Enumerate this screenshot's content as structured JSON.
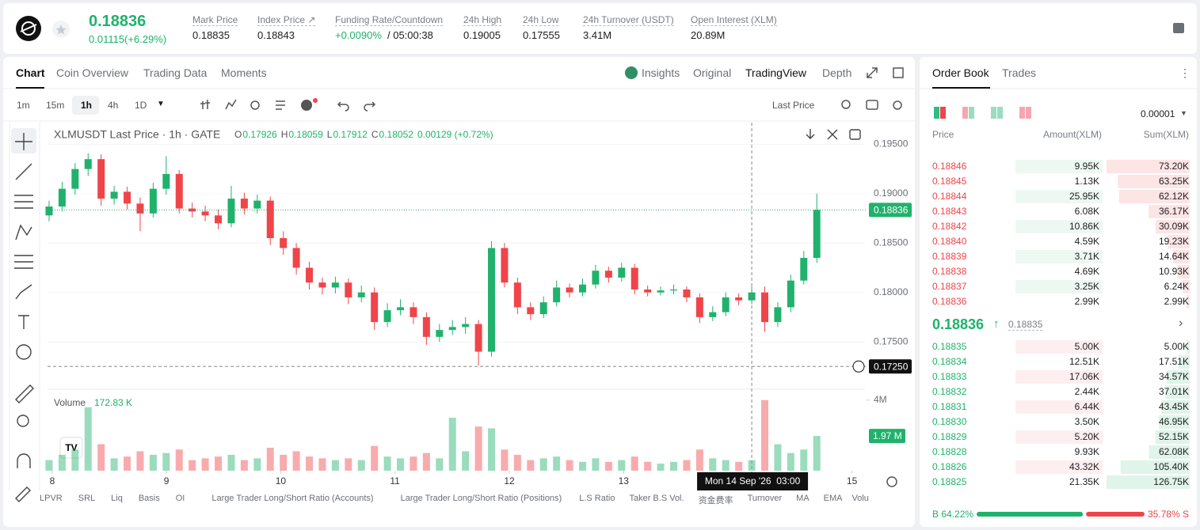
{
  "header": {
    "price": "0.18836",
    "change": "0.01115(+6.29%)",
    "stats": [
      {
        "label": "Mark Price",
        "value": "0.18835"
      },
      {
        "label": "Index Price ↗",
        "value": "0.18843"
      },
      {
        "label": "Funding Rate/Countdown",
        "value": "+0.0090%",
        "extra": " / 05:00:38"
      },
      {
        "label": "24h High",
        "value": "0.19005"
      },
      {
        "label": "24h Low",
        "value": "0.17555"
      },
      {
        "label": "24h Turnover (USDT)",
        "value": "3.41M"
      },
      {
        "label": "Open Interest (XLM)",
        "value": "20.89M"
      }
    ]
  },
  "tabs": {
    "left": [
      "Chart",
      "Coin Overview",
      "Trading Data",
      "Moments"
    ],
    "right": [
      "Insights",
      "Original",
      "TradingView",
      "Depth"
    ]
  },
  "toolbar": {
    "intervals": [
      "1m",
      "15m",
      "1h",
      "4h",
      "1D"
    ],
    "price_type": "Last Price"
  },
  "indicators": [
    "LPVR",
    "SRL",
    "Liq",
    "Basis",
    "OI",
    "Large Trader Long/Short Ratio (Accounts)",
    "Large Trader Long/Short Ratio (Positions)",
    "L.S Ratio",
    "Taker B.S Vol.",
    "资金费率",
    "Turnover",
    "MA",
    "EMA",
    "Volu"
  ],
  "chart_data": {
    "type": "candlestick",
    "title": "XLMUSDT Last Price · 1h · GATE",
    "legend": [
      {
        "k": "O",
        "v": "0.17926"
      },
      {
        "k": "H",
        "v": "0.18059"
      },
      {
        "k": "L",
        "v": "0.17912"
      },
      {
        "k": "C",
        "v": "0.18052"
      },
      {
        "k": "",
        "v": "0.00129 (+0.72%)"
      }
    ],
    "up_color": "#20b26c",
    "down_color": "#ef454a",
    "xlim": [
      -0.12,
      62.7
    ],
    "xticks": [
      {
        "value": 0.24,
        "label": "8"
      },
      {
        "value": 9.02,
        "label": "9"
      },
      {
        "value": 17.8,
        "label": "10"
      },
      {
        "value": 26.58,
        "label": "11"
      },
      {
        "value": 35.37,
        "label": "12"
      },
      {
        "value": 44.15,
        "label": "13"
      },
      {
        "value": 61.7,
        "label": "15"
      }
    ],
    "ylim": [
      0.1702,
      0.1972
    ],
    "yticks": [
      {
        "value": 0.195,
        "label": "0.19500"
      },
      {
        "value": 0.19,
        "label": "0.19000"
      },
      {
        "value": 0.185,
        "label": "0.18500"
      },
      {
        "value": 0.18,
        "label": "0.18000"
      },
      {
        "value": 0.175,
        "label": "0.17500"
      }
    ],
    "last_price": 0.18836,
    "crosshair_y": {
      "value": 0.1725,
      "label": "0.17250"
    },
    "crosshair_x": {
      "value": 54,
      "label": "Mon 14 Sep '26  03:00"
    },
    "volume_title": "Volume",
    "volume_legend": "172.83 K",
    "y2lim": [
      0,
      4.35
    ],
    "y2ticks": [
      {
        "value": 4,
        "label": "4M"
      }
    ],
    "volume_tag": {
      "value": 1.97,
      "label": "1.97 M"
    },
    "ohlc": [
      [
        0.1878,
        0.1893,
        0.1872,
        0.1887
      ],
      [
        0.1887,
        0.1912,
        0.1882,
        0.1905
      ],
      [
        0.1905,
        0.1931,
        0.1899,
        0.1925
      ],
      [
        0.1925,
        0.1941,
        0.1918,
        0.1935
      ],
      [
        0.1935,
        0.194,
        0.1888,
        0.1895
      ],
      [
        0.1895,
        0.1908,
        0.1889,
        0.1902
      ],
      [
        0.1902,
        0.1907,
        0.1884,
        0.189
      ],
      [
        0.189,
        0.1896,
        0.1862,
        0.188
      ],
      [
        0.188,
        0.1911,
        0.1876,
        0.1905
      ],
      [
        0.1905,
        0.1938,
        0.1899,
        0.192
      ],
      [
        0.192,
        0.1924,
        0.188,
        0.1885
      ],
      [
        0.1885,
        0.1891,
        0.1876,
        0.1882
      ],
      [
        0.1882,
        0.1888,
        0.1872,
        0.1878
      ],
      [
        0.1878,
        0.1884,
        0.1864,
        0.187
      ],
      [
        0.187,
        0.1908,
        0.1866,
        0.1895
      ],
      [
        0.1895,
        0.1901,
        0.1879,
        0.1885
      ],
      [
        0.1885,
        0.1899,
        0.188,
        0.1893
      ],
      [
        0.1893,
        0.1897,
        0.1848,
        0.1855
      ],
      [
        0.1855,
        0.1862,
        0.1838,
        0.1845
      ],
      [
        0.1845,
        0.185,
        0.1818,
        0.1825
      ],
      [
        0.1825,
        0.1831,
        0.1803,
        0.181
      ],
      [
        0.181,
        0.1815,
        0.1798,
        0.1805
      ],
      [
        0.1805,
        0.1816,
        0.1799,
        0.181
      ],
      [
        0.181,
        0.1814,
        0.1788,
        0.1795
      ],
      [
        0.1795,
        0.1807,
        0.179,
        0.18
      ],
      [
        0.18,
        0.1805,
        0.1762,
        0.177
      ],
      [
        0.177,
        0.1789,
        0.1765,
        0.1782
      ],
      [
        0.1782,
        0.1793,
        0.1777,
        0.1785
      ],
      [
        0.1785,
        0.179,
        0.1768,
        0.1775
      ],
      [
        0.1775,
        0.178,
        0.1747,
        0.1755
      ],
      [
        0.1755,
        0.1768,
        0.175,
        0.1762
      ],
      [
        0.1762,
        0.1772,
        0.1757,
        0.1765
      ],
      [
        0.1765,
        0.1775,
        0.1758,
        0.1768
      ],
      [
        0.1768,
        0.1772,
        0.1726,
        0.174
      ],
      [
        0.174,
        0.1852,
        0.1735,
        0.1845
      ],
      [
        0.1845,
        0.185,
        0.1805,
        0.181
      ],
      [
        0.181,
        0.1815,
        0.1778,
        0.1785
      ],
      [
        0.1785,
        0.179,
        0.1772,
        0.1778
      ],
      [
        0.1778,
        0.1796,
        0.1774,
        0.179
      ],
      [
        0.179,
        0.1812,
        0.1786,
        0.1805
      ],
      [
        0.1805,
        0.1809,
        0.1795,
        0.18
      ],
      [
        0.18,
        0.1814,
        0.1796,
        0.1808
      ],
      [
        0.1808,
        0.1828,
        0.1804,
        0.1822
      ],
      [
        0.1822,
        0.1826,
        0.181,
        0.1815
      ],
      [
        0.1815,
        0.183,
        0.1811,
        0.1825
      ],
      [
        0.1825,
        0.1829,
        0.1798,
        0.1803
      ],
      [
        0.1803,
        0.1807,
        0.1796,
        0.18
      ],
      [
        0.18,
        0.1806,
        0.1797,
        0.1802
      ],
      [
        0.1802,
        0.1808,
        0.1798,
        0.1803
      ],
      [
        0.1803,
        0.1806,
        0.179,
        0.1795
      ],
      [
        0.1795,
        0.1799,
        0.1769,
        0.1775
      ],
      [
        0.1775,
        0.1786,
        0.1771,
        0.178
      ],
      [
        0.178,
        0.18,
        0.1776,
        0.1795
      ],
      [
        0.1795,
        0.1799,
        0.1787,
        0.1792
      ],
      [
        0.1792,
        0.1806,
        0.1788,
        0.18
      ],
      [
        0.18,
        0.1806,
        0.176,
        0.177
      ],
      [
        0.177,
        0.179,
        0.1765,
        0.1785
      ],
      [
        0.1785,
        0.1818,
        0.178,
        0.1812
      ],
      [
        0.1812,
        0.1842,
        0.1808,
        0.1835
      ],
      [
        0.1835,
        0.19,
        0.183,
        0.18836
      ]
    ],
    "volume": [
      0.6,
      0.9,
      1.2,
      3.6,
      1.5,
      0.7,
      0.8,
      1.1,
      0.9,
      1.0,
      1.2,
      0.6,
      0.7,
      0.8,
      0.9,
      0.6,
      0.7,
      1.3,
      0.9,
      1.1,
      0.8,
      0.7,
      0.6,
      0.7,
      0.6,
      1.4,
      0.8,
      0.7,
      0.8,
      1.0,
      0.7,
      3.0,
      1.1,
      2.5,
      2.4,
      1.2,
      0.9,
      0.6,
      0.7,
      0.8,
      0.6,
      0.5,
      0.7,
      0.5,
      0.6,
      0.8,
      0.5,
      0.4,
      0.5,
      0.6,
      1.2,
      0.7,
      0.6,
      0.5,
      0.6,
      4.0,
      1.5,
      1.0,
      1.2,
      1.97
    ]
  },
  "order_book": {
    "tabs": [
      "Order Book",
      "Trades"
    ],
    "precision": "0.00001",
    "columns": [
      "Price",
      "Amount(XLM)",
      "Sum(XLM)"
    ],
    "asks": [
      [
        "0.18846",
        "9.95K",
        "73.20K"
      ],
      [
        "0.18845",
        "1.13K",
        "63.25K"
      ],
      [
        "0.18844",
        "25.95K",
        "62.12K"
      ],
      [
        "0.18843",
        "6.08K",
        "36.17K"
      ],
      [
        "0.18842",
        "10.86K",
        "30.09K"
      ],
      [
        "0.18840",
        "4.59K",
        "19.23K"
      ],
      [
        "0.18839",
        "3.71K",
        "14.64K"
      ],
      [
        "0.18838",
        "4.69K",
        "10.93K"
      ],
      [
        "0.18837",
        "3.25K",
        "6.24K"
      ],
      [
        "0.18836",
        "2.99K",
        "2.99K"
      ]
    ],
    "mid_price": "0.18836",
    "mark_price": "0.18835",
    "bids": [
      [
        "0.18835",
        "5.00K",
        "5.00K"
      ],
      [
        "0.18834",
        "12.51K",
        "17.51K"
      ],
      [
        "0.18833",
        "17.06K",
        "34.57K"
      ],
      [
        "0.18832",
        "2.44K",
        "37.01K"
      ],
      [
        "0.18831",
        "6.44K",
        "43.45K"
      ],
      [
        "0.18830",
        "3.50K",
        "46.95K"
      ],
      [
        "0.18829",
        "5.20K",
        "52.15K"
      ],
      [
        "0.18828",
        "9.93K",
        "62.08K"
      ],
      [
        "0.18826",
        "43.32K",
        "105.40K"
      ],
      [
        "0.18825",
        "21.35K",
        "126.75K"
      ]
    ],
    "buy": {
      "value": 64.22,
      "label": "B 64.22%"
    },
    "sell": {
      "value": 35.78,
      "label": "35.78% S"
    }
  }
}
